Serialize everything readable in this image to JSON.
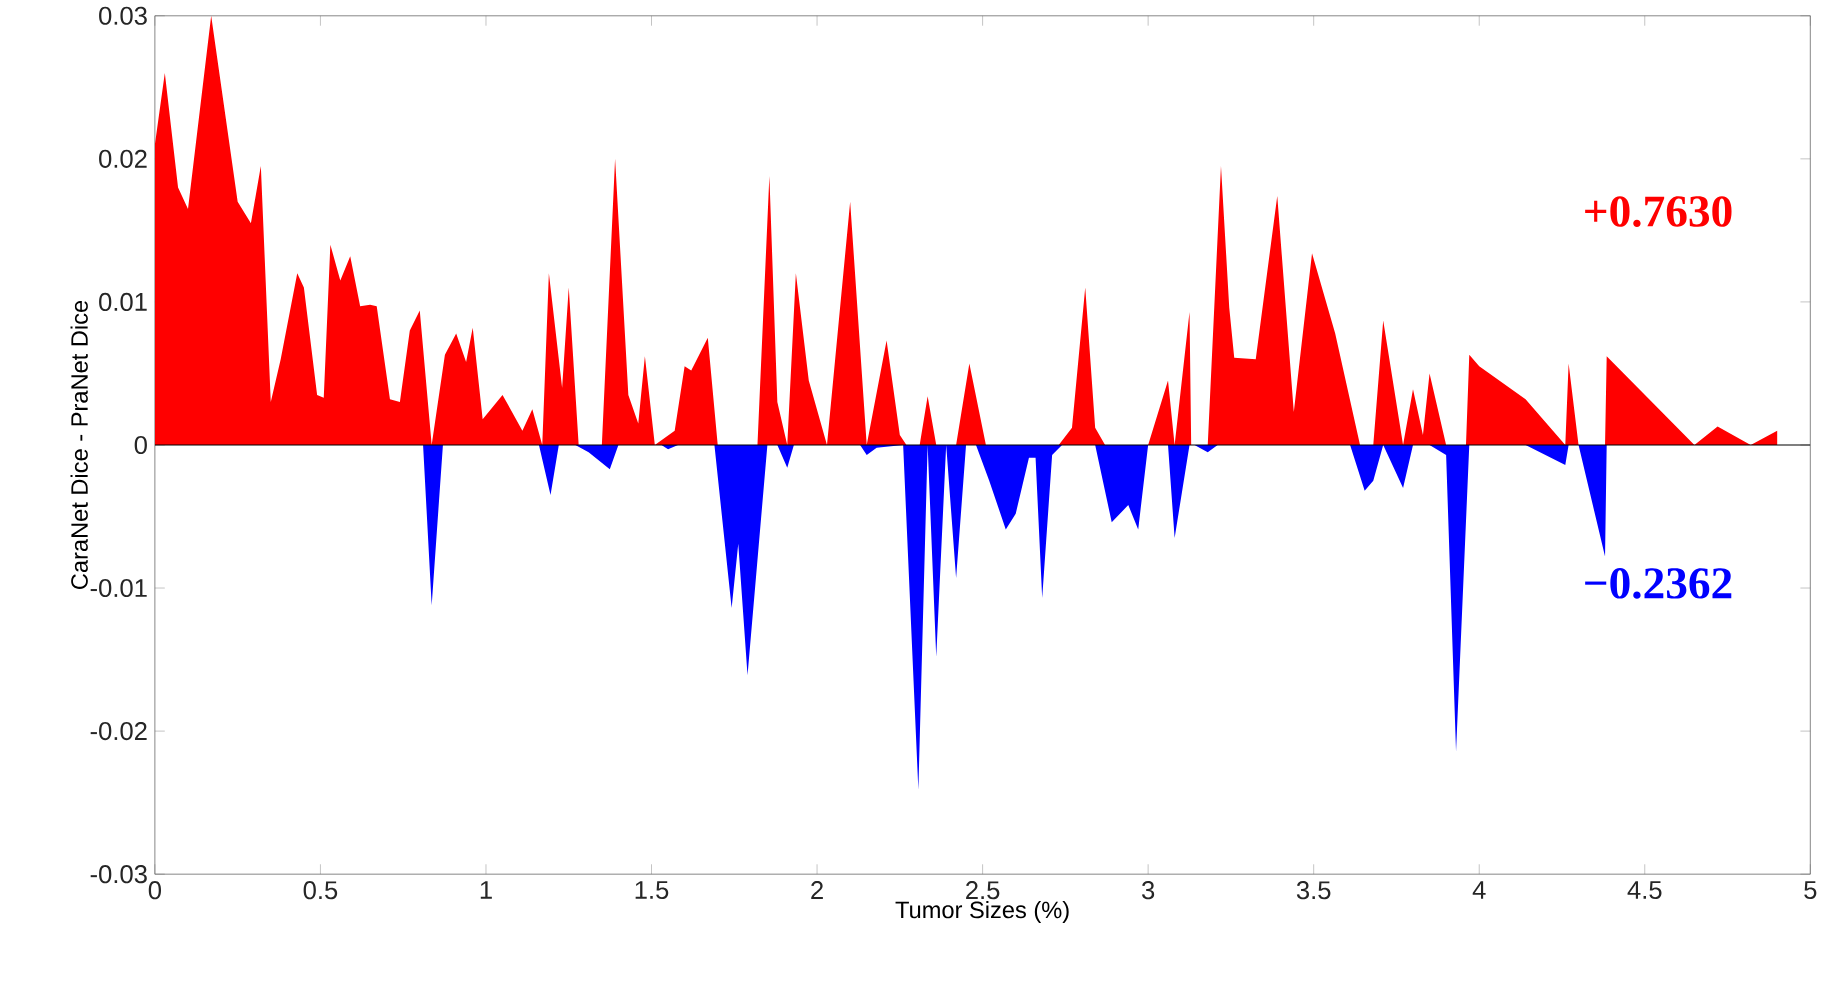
{
  "chart_data": {
    "type": "area",
    "xlabel": "Tumor Sizes (%)",
    "ylabel": "CaraNet Dice - PraNet Dice",
    "xlim": [
      0,
      5
    ],
    "ylim": [
      -0.03,
      0.03
    ],
    "xticks": [
      0,
      0.5,
      1,
      1.5,
      2,
      2.5,
      3,
      3.5,
      4,
      4.5,
      5
    ],
    "yticks": [
      -0.03,
      -0.02,
      -0.01,
      0,
      0.01,
      0.02,
      0.03
    ],
    "grid": false,
    "ref_lines": [
      {
        "axis": "y",
        "value": 0,
        "color": "#000000"
      }
    ],
    "annotations": [
      "+0.7630",
      "−0.2362"
    ],
    "series": [
      {
        "color": "#ff0000",
        "x": [
          0,
          0.03,
          0.07,
          0.1,
          0.17,
          0.25,
          0.29,
          0.32,
          0.35,
          0.38,
          0.43,
          0.45,
          0.49,
          0.51,
          0.53,
          0.56,
          0.59,
          0.62,
          0.65,
          0.67,
          0.71,
          0.74,
          0.77,
          0.8,
          0.836,
          0.876,
          0.91,
          0.94,
          0.96,
          0.99,
          1.05,
          1.11,
          1.14,
          1.17,
          1.19,
          1.23,
          1.25,
          1.28,
          1.35,
          1.39,
          1.43,
          1.46,
          1.48,
          1.51,
          1.57,
          1.6,
          1.62,
          1.67,
          1.7,
          1.82,
          1.856,
          1.88,
          1.91,
          1.936,
          1.975,
          2.03,
          2.1,
          2.15,
          2.21,
          2.25,
          2.27,
          2.31,
          2.334,
          2.36,
          2.42,
          2.46,
          2.51,
          2.73,
          2.77,
          2.81,
          2.84,
          2.87,
          3.0,
          3.06,
          3.08,
          3.125,
          3.13,
          3.18,
          3.22,
          3.245,
          3.26,
          3.325,
          3.39,
          3.44,
          3.495,
          3.565,
          3.64,
          3.68,
          3.71,
          3.77,
          3.8,
          3.83,
          3.85,
          3.9,
          3.96,
          3.97,
          4.0,
          4.14,
          4.26,
          4.27,
          4.3,
          4.38,
          4.385,
          4.65,
          4.72,
          4.82,
          4.9
        ],
        "values": [
          0.021,
          0.026,
          0.018,
          0.0165,
          0.03,
          0.017,
          0.0155,
          0.0195,
          0.003,
          0.006,
          0.012,
          0.011,
          0.0035,
          0.0033,
          0.014,
          0.0115,
          0.0132,
          0.0097,
          0.0098,
          0.0097,
          0.0032,
          0.003,
          0.008,
          0.0094,
          0,
          0.0063,
          0.0078,
          0.0058,
          0.0082,
          0.0018,
          0.0035,
          0.001,
          0.0025,
          0,
          0.012,
          0.004,
          0.011,
          0,
          0,
          0.02,
          0.0035,
          0.0015,
          0.0062,
          0,
          0.001,
          0.0055,
          0.0052,
          0.0075,
          0,
          0,
          0.0188,
          0.003,
          0,
          0.012,
          0.0045,
          0,
          0.017,
          0,
          0.0073,
          0.0007,
          0,
          0,
          0.0034,
          0,
          0,
          0.0057,
          0,
          0,
          0.0012,
          0.011,
          0.0012,
          0,
          0,
          0.0045,
          0,
          0.0093,
          0,
          0,
          0.0195,
          0.0096,
          0.0061,
          0.006,
          0.0174,
          0.0023,
          0.0134,
          0.0078,
          0,
          0,
          0.0087,
          0,
          0.0039,
          0.0007,
          0.005,
          0,
          0,
          0.0063,
          0.0055,
          0.0032,
          0,
          0.0057,
          0,
          0,
          0.0062,
          0,
          0.0013,
          0,
          0.001
        ]
      },
      {
        "color": "#0000ff",
        "x": [
          0.81,
          0.836,
          0.87,
          1.16,
          1.195,
          1.22,
          1.27,
          1.31,
          1.374,
          1.4,
          1.53,
          1.55,
          1.58,
          1.69,
          1.742,
          1.762,
          1.79,
          1.85,
          1.88,
          1.91,
          1.93,
          2.13,
          2.15,
          2.18,
          2.26,
          2.306,
          2.334,
          2.36,
          2.39,
          2.42,
          2.45,
          2.48,
          2.52,
          2.57,
          2.6,
          2.64,
          2.66,
          2.68,
          2.71,
          2.74,
          2.84,
          2.89,
          2.94,
          2.97,
          3.0,
          3.06,
          3.08,
          3.125,
          3.14,
          3.18,
          3.21,
          3.61,
          3.654,
          3.68,
          3.71,
          3.77,
          3.8,
          3.85,
          3.9,
          3.93,
          3.97,
          4.14,
          4.26,
          4.27,
          4.3,
          4.38,
          4.385
        ],
        "values": [
          0,
          -0.0112,
          0,
          0,
          -0.0035,
          0,
          0,
          -0.0005,
          -0.0017,
          0,
          0,
          -0.0003,
          0,
          0,
          -0.0114,
          -0.0069,
          -0.0161,
          0,
          0,
          -0.0016,
          0,
          0,
          -0.0007,
          -0.0002,
          0,
          -0.0241,
          0,
          -0.0148,
          0,
          -0.0093,
          0,
          0,
          -0.0025,
          -0.0059,
          -0.0048,
          -0.0009,
          -0.0009,
          -0.0107,
          -0.0007,
          0,
          0,
          -0.0054,
          -0.0042,
          -0.0059,
          0,
          0,
          -0.0065,
          0,
          0,
          -0.0005,
          0,
          0,
          -0.0032,
          -0.0025,
          0,
          -0.003,
          0,
          0,
          -0.0007,
          -0.0214,
          0,
          0,
          -0.0014,
          0,
          0,
          -0.0078,
          0
        ]
      }
    ]
  }
}
